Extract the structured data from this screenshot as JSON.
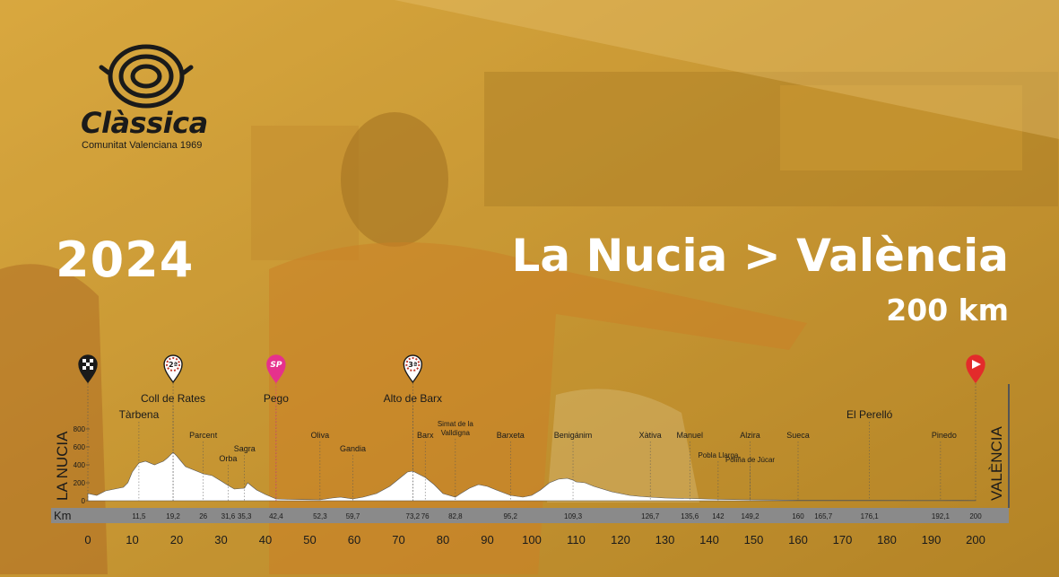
{
  "brand": {
    "name": "Clàssica",
    "subtitle": "Comunitat Valenciana 1969"
  },
  "year": "2024",
  "route": "La Nucia > València",
  "distance": "200 km",
  "start_label": "LA NUCIA",
  "finish_label": "VALÈNCIA",
  "colors": {
    "overlay": "#d7a43a",
    "text_light": "#ffffff",
    "text_dark": "#1a1a1a",
    "profile_fill": "#ffffff",
    "axis_bar": "#8a8a8a",
    "sprint_pink": "#e6318c",
    "finish_red": "#e32b2b"
  },
  "profile": {
    "km_unit": "Km",
    "axis_ticks": [
      "0",
      "10",
      "20",
      "30",
      "40",
      "50",
      "60",
      "70",
      "80",
      "90",
      "100",
      "110",
      "120",
      "130",
      "140",
      "150",
      "160",
      "170",
      "180",
      "190",
      "200"
    ],
    "altitude_ticks": [
      "800",
      "600",
      "400",
      "200",
      "0"
    ],
    "km_markers": [
      "11,5",
      "19,2",
      "26",
      "31,6",
      "35,3",
      "42,4",
      "52,3",
      "59,7",
      "73,2",
      "76",
      "82,8",
      "95,2",
      "109,3",
      "126,7",
      "135,6",
      "142",
      "149,2",
      "160",
      "165,7",
      "176,1",
      "192,1",
      "200"
    ],
    "towns": [
      {
        "name": "Tàrbena",
        "km": 11.5,
        "row": 1
      },
      {
        "name": "Coll de Rates",
        "km": 19.2,
        "row": 0
      },
      {
        "name": "Parcent",
        "km": 26,
        "row": 2
      },
      {
        "name": "Orba",
        "km": 31.6,
        "row": 4
      },
      {
        "name": "Sagra",
        "km": 35.3,
        "row": 3
      },
      {
        "name": "Pego",
        "km": 42.4,
        "row": 0
      },
      {
        "name": "Oliva",
        "km": 52.3,
        "row": 2
      },
      {
        "name": "Gandia",
        "km": 59.7,
        "row": 3
      },
      {
        "name": "Alto de Barx",
        "km": 73.2,
        "row": 0
      },
      {
        "name": "Barx",
        "km": 76,
        "row": 2
      },
      {
        "name": "Simat de la",
        "km": 82.8,
        "row": 5
      },
      {
        "name": "Valldigna",
        "km": 82.8,
        "row": 6
      },
      {
        "name": "Barxeta",
        "km": 95.2,
        "row": 2
      },
      {
        "name": "Benigánim",
        "km": 109.3,
        "row": 2
      },
      {
        "name": "Xàtiva",
        "km": 126.7,
        "row": 2
      },
      {
        "name": "Manuel",
        "km": 135.6,
        "row": 2
      },
      {
        "name": "Pobla Llarga",
        "km": 142,
        "row": 7
      },
      {
        "name": "Alzira",
        "km": 149.2,
        "row": 2
      },
      {
        "name": "Poliña de Júcar",
        "km": 149.2,
        "row": 8
      },
      {
        "name": "Sueca",
        "km": 160,
        "row": 2
      },
      {
        "name": "El Perelló",
        "km": 176.1,
        "row": 1
      },
      {
        "name": "Pinedo",
        "km": 192.1,
        "row": 2
      }
    ],
    "icons": [
      {
        "name": "start-flag-icon",
        "km": 0,
        "label": ""
      },
      {
        "name": "mountain-2nd-icon",
        "km": 19.2,
        "label": "2ª"
      },
      {
        "name": "sprint-icon",
        "km": 42.4,
        "label": "SP"
      },
      {
        "name": "mountain-3rd-icon",
        "km": 73.2,
        "label": "3ª"
      },
      {
        "name": "finish-flag-icon",
        "km": 200,
        "label": ""
      }
    ]
  }
}
